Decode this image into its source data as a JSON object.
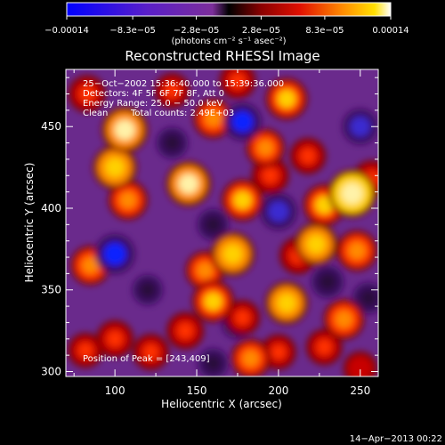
{
  "chart_data": {
    "type": "heatmap",
    "title": "Reconstructed RHESSI Image",
    "xlabel": "Heliocentric X (arcsec)",
    "ylabel": "Heliocentric Y (arcsec)",
    "xlim": [
      70,
      261
    ],
    "ylim": [
      297,
      485
    ],
    "x_ticks": [
      100,
      150,
      200,
      250
    ],
    "y_ticks": [
      300,
      350,
      400,
      450
    ],
    "colorbar": {
      "range": [
        -0.00014,
        0.00014
      ],
      "ticks": [
        {
          "value": -0.00014,
          "label": "−0.00014"
        },
        {
          "value": -8.3e-05,
          "label": "−8.3e−05"
        },
        {
          "value": -2.8e-05,
          "label": "−2.8e−05"
        },
        {
          "value": 2.8e-05,
          "label": "2.8e−05"
        },
        {
          "value": 8.3e-05,
          "label": "8.3e−05"
        },
        {
          "value": 0.00014,
          "label": "0.00014"
        }
      ],
      "unit_label": "(photons cm⁻² s⁻¹ asec⁻²)"
    },
    "annotations": {
      "time_range": "25−Oct−2002 15:36:40.000 to 15:39:36.000",
      "detectors": "Detectors: 4F 5F 6F 7F 8F, Att 0",
      "energy_range": "Energy Range: 25.0 − 50.0 keV",
      "algorithm": "Clean",
      "total_counts": "Total counts: 2.49E+03",
      "peak": "Position of Peak = [243,409]"
    },
    "blobs": [
      {
        "x": 245,
        "y": 409,
        "v": 1.0
      },
      {
        "x": 228,
        "y": 402,
        "v": 0.7
      },
      {
        "x": 257,
        "y": 418,
        "v": 0.5
      },
      {
        "x": 106,
        "y": 448,
        "v": 0.9
      },
      {
        "x": 100,
        "y": 425,
        "v": 0.8
      },
      {
        "x": 108,
        "y": 405,
        "v": 0.6
      },
      {
        "x": 83,
        "y": 470,
        "v": 0.5
      },
      {
        "x": 135,
        "y": 472,
        "v": 0.4
      },
      {
        "x": 160,
        "y": 455,
        "v": 0.6
      },
      {
        "x": 175,
        "y": 478,
        "v": 0.45
      },
      {
        "x": 205,
        "y": 467,
        "v": 0.7
      },
      {
        "x": 192,
        "y": 437,
        "v": 0.55
      },
      {
        "x": 218,
        "y": 432,
        "v": 0.45
      },
      {
        "x": 145,
        "y": 415,
        "v": 0.85
      },
      {
        "x": 178,
        "y": 405,
        "v": 0.7
      },
      {
        "x": 195,
        "y": 420,
        "v": 0.5
      },
      {
        "x": 223,
        "y": 378,
        "v": 0.75
      },
      {
        "x": 212,
        "y": 371,
        "v": 0.5
      },
      {
        "x": 248,
        "y": 374,
        "v": 0.65
      },
      {
        "x": 172,
        "y": 372,
        "v": 0.8
      },
      {
        "x": 155,
        "y": 362,
        "v": 0.55
      },
      {
        "x": 85,
        "y": 365,
        "v": 0.6
      },
      {
        "x": 160,
        "y": 343,
        "v": 0.7
      },
      {
        "x": 178,
        "y": 333,
        "v": 0.4
      },
      {
        "x": 205,
        "y": 342,
        "v": 0.75
      },
      {
        "x": 240,
        "y": 332,
        "v": 0.65
      },
      {
        "x": 228,
        "y": 315,
        "v": 0.45
      },
      {
        "x": 143,
        "y": 325,
        "v": 0.5
      },
      {
        "x": 100,
        "y": 320,
        "v": 0.5
      },
      {
        "x": 122,
        "y": 312,
        "v": 0.45
      },
      {
        "x": 82,
        "y": 313,
        "v": 0.4
      },
      {
        "x": 183,
        "y": 308,
        "v": 0.6
      },
      {
        "x": 200,
        "y": 312,
        "v": 0.4
      },
      {
        "x": 250,
        "y": 302,
        "v": 0.35
      },
      {
        "x": 250,
        "y": 450,
        "v": -0.5
      },
      {
        "x": 178,
        "y": 453,
        "v": -0.6
      },
      {
        "x": 200,
        "y": 398,
        "v": -0.55
      },
      {
        "x": 100,
        "y": 372,
        "v": -0.7
      },
      {
        "x": 175,
        "y": 330,
        "v": -0.35
      },
      {
        "x": 230,
        "y": 355,
        "v": -0.35
      },
      {
        "x": 160,
        "y": 390,
        "v": -0.3
      },
      {
        "x": 135,
        "y": 440,
        "v": -0.3
      },
      {
        "x": 255,
        "y": 345,
        "v": -0.3
      },
      {
        "x": 160,
        "y": 305,
        "v": -0.25
      },
      {
        "x": 120,
        "y": 350,
        "v": -0.25
      }
    ]
  },
  "footer": {
    "timestamp": "14−Apr−2013 00:22"
  }
}
